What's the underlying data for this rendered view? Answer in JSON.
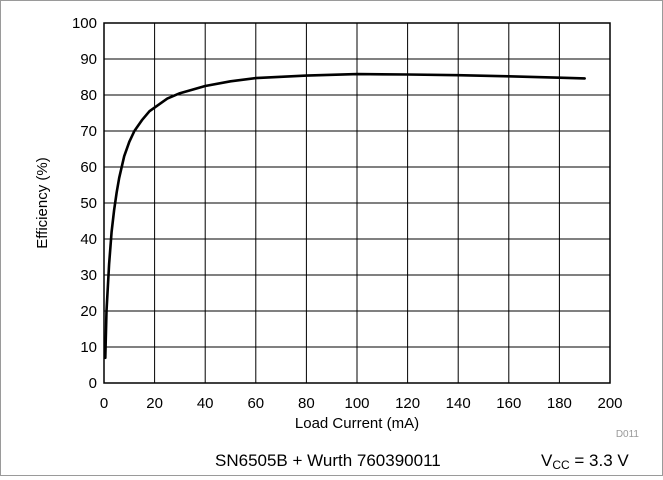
{
  "chart_data": {
    "type": "line",
    "ylabel": "Efficiency (%)",
    "xlabel": "Load Current (mA)",
    "xlim": [
      0,
      200
    ],
    "ylim": [
      0,
      100
    ],
    "xticks": [
      0,
      20,
      40,
      60,
      80,
      100,
      120,
      140,
      160,
      180,
      200
    ],
    "yticks": [
      0,
      10,
      20,
      30,
      40,
      50,
      60,
      70,
      80,
      90,
      100
    ],
    "grid": true,
    "series": [
      {
        "x": [
          0.5,
          1,
          2,
          3,
          4,
          5,
          6,
          8,
          10,
          12,
          15,
          18,
          20,
          25,
          30,
          35,
          40,
          50,
          60,
          80,
          100,
          120,
          140,
          160,
          180,
          190
        ],
        "y": [
          7,
          20,
          33,
          42,
          48,
          53,
          57,
          63,
          67,
          70,
          73,
          75.5,
          76.5,
          79,
          80.5,
          81.5,
          82.5,
          83.8,
          84.7,
          85.4,
          85.8,
          85.7,
          85.5,
          85.2,
          84.8,
          84.6
        ],
        "color": "#000000"
      }
    ],
    "identifier": "D011"
  },
  "caption": {
    "left": "SN6505B + Wurth 760390011",
    "right_prefix": "V",
    "right_sub": "CC",
    "right_suffix": " = 3.3 V"
  }
}
